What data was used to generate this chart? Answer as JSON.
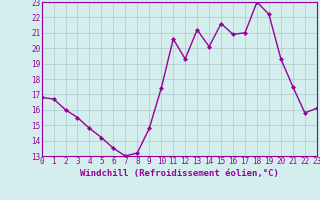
{
  "x": [
    0,
    1,
    2,
    3,
    4,
    5,
    6,
    7,
    8,
    9,
    10,
    11,
    12,
    13,
    14,
    15,
    16,
    17,
    18,
    19,
    20,
    21,
    22,
    23
  ],
  "y": [
    16.8,
    16.7,
    16.0,
    15.5,
    14.8,
    14.2,
    13.5,
    13.0,
    13.2,
    14.8,
    17.4,
    20.6,
    19.3,
    21.2,
    20.1,
    21.6,
    20.9,
    21.0,
    23.0,
    22.2,
    19.3,
    17.5,
    15.8,
    16.1
  ],
  "line_color": "#990099",
  "marker": "D",
  "marker_size": 2,
  "bg_color": "#d4eeee",
  "grid_color": "#aacccc",
  "xlabel": "Windchill (Refroidissement éolien,°C)",
  "ylim": [
    13,
    23
  ],
  "xlim": [
    0,
    23
  ],
  "yticks": [
    13,
    14,
    15,
    16,
    17,
    18,
    19,
    20,
    21,
    22,
    23
  ],
  "xticks": [
    0,
    1,
    2,
    3,
    4,
    5,
    6,
    7,
    8,
    9,
    10,
    11,
    12,
    13,
    14,
    15,
    16,
    17,
    18,
    19,
    20,
    21,
    22,
    23
  ],
  "tick_fontsize": 5.5,
  "xlabel_fontsize": 6.5,
  "linewidth": 1.0,
  "spine_color": "#990099",
  "spine_linewidth": 0.8
}
